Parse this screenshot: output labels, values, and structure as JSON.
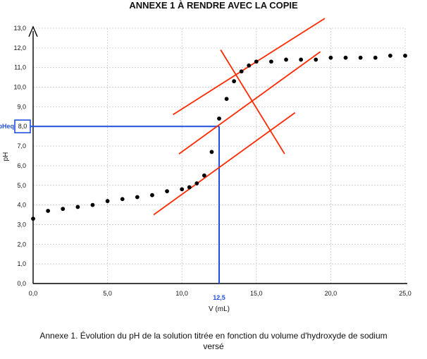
{
  "header": {
    "title": "ANNEXE 1 À RENDRE AVEC LA COPIE"
  },
  "caption": {
    "line1": "Annexe 1. Évolution du pH de la solution titrée en fonction du volume d'hydroxyde de sodium",
    "line2": "versé"
  },
  "colors": {
    "points": "#000000",
    "tangents": "#ff2a00",
    "equivalence": "#1f4fe0",
    "grid": "#c8c8c8",
    "axes": "#000000"
  },
  "chart_data": {
    "type": "scatter",
    "title": "",
    "xlabel": "V (mL)",
    "ylabel": "pH",
    "xlim": [
      0,
      25
    ],
    "ylim": [
      0,
      13
    ],
    "grid": true,
    "x_ticks": [
      {
        "value": 0,
        "label": "0,0"
      },
      {
        "value": 5,
        "label": "5,0"
      },
      {
        "value": 10,
        "label": "10,0"
      },
      {
        "value": 15,
        "label": "15,0"
      },
      {
        "value": 20,
        "label": "20,0"
      },
      {
        "value": 25,
        "label": "25,0"
      }
    ],
    "y_ticks": [
      {
        "value": 0,
        "label": "0,0"
      },
      {
        "value": 1,
        "label": "1,0"
      },
      {
        "value": 2,
        "label": "2,0"
      },
      {
        "value": 3,
        "label": "3,0"
      },
      {
        "value": 4,
        "label": "4,0"
      },
      {
        "value": 5,
        "label": "5,0"
      },
      {
        "value": 6,
        "label": "6,0"
      },
      {
        "value": 7,
        "label": "7,0"
      },
      {
        "value": 9,
        "label": "9,0"
      },
      {
        "value": 10,
        "label": "10,0"
      },
      {
        "value": 11,
        "label": "11,0"
      },
      {
        "value": 12,
        "label": "12,0"
      },
      {
        "value": 13,
        "label": "13,0"
      }
    ],
    "points": [
      [
        0,
        3.3
      ],
      [
        1,
        3.7
      ],
      [
        2,
        3.8
      ],
      [
        3,
        3.9
      ],
      [
        4,
        4.0
      ],
      [
        5,
        4.2
      ],
      [
        6,
        4.3
      ],
      [
        7,
        4.4
      ],
      [
        8,
        4.5
      ],
      [
        9,
        4.7
      ],
      [
        10,
        4.8
      ],
      [
        10.5,
        4.9
      ],
      [
        11,
        5.1
      ],
      [
        11.5,
        5.5
      ],
      [
        12,
        6.7
      ],
      [
        12.5,
        8.4
      ],
      [
        13,
        9.4
      ],
      [
        13.5,
        10.3
      ],
      [
        14,
        10.8
      ],
      [
        14.5,
        11.1
      ],
      [
        15,
        11.3
      ],
      [
        16,
        11.3
      ],
      [
        17,
        11.4
      ],
      [
        18,
        11.4
      ],
      [
        19,
        11.4
      ],
      [
        20,
        11.5
      ],
      [
        21,
        11.5
      ],
      [
        22,
        11.5
      ],
      [
        23,
        11.5
      ],
      [
        24,
        11.6
      ],
      [
        25,
        11.6
      ]
    ],
    "tangents": [
      {
        "from": [
          9.4,
          8.6
        ],
        "to": [
          19.6,
          13.5
        ]
      },
      {
        "from": [
          9.8,
          6.6
        ],
        "to": [
          19.3,
          11.8
        ]
      },
      {
        "from": [
          8.1,
          3.5
        ],
        "to": [
          17.6,
          8.7
        ]
      },
      {
        "from": [
          12.6,
          11.9
        ],
        "to": [
          16.9,
          6.6
        ]
      }
    ],
    "equivalence": {
      "x": 12.5,
      "y": 8.0,
      "x_label": "12,5",
      "y_label": "8,0",
      "y_name": "pHeq"
    }
  }
}
